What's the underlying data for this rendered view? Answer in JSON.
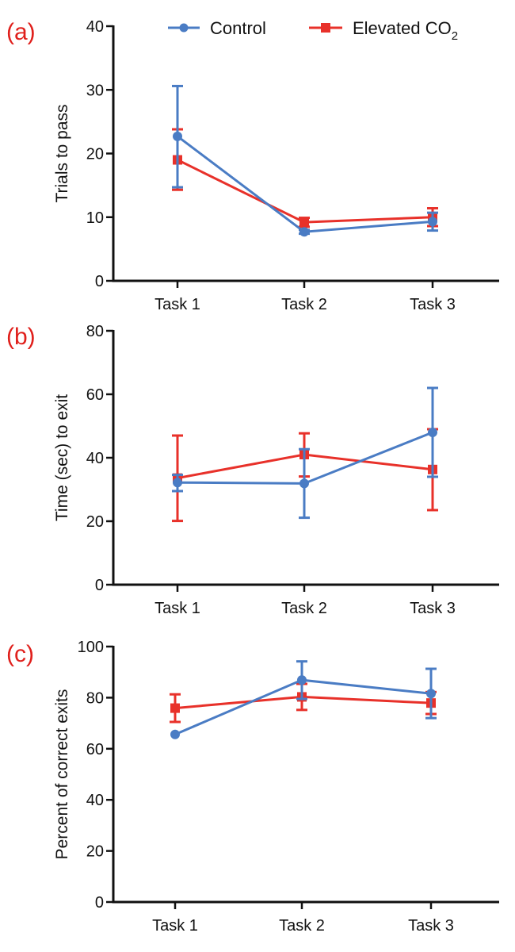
{
  "legend": {
    "control_label": "Control",
    "elevated_label": "Elevated CO",
    "elevated_sub": "2"
  },
  "colors": {
    "control": "#4a7cc4",
    "elevated": "#e8312a",
    "panel_letter": "#e0201c",
    "axis": "#111111"
  },
  "chart_data": [
    {
      "panel": "(a)",
      "type": "line",
      "title": "",
      "xlabel": "",
      "ylabel": "Trials to pass",
      "categories": [
        "Task 1",
        "Task 2",
        "Task 3"
      ],
      "ylim": [
        0,
        40
      ],
      "yticks": [
        0,
        10,
        20,
        30,
        40
      ],
      "series": [
        {
          "name": "Control",
          "values": [
            22.7,
            7.7,
            9.3
          ],
          "error": [
            [
              14.7,
              30.6
            ],
            [
              7.4,
              8.0
            ],
            [
              7.9,
              10.7
            ]
          ]
        },
        {
          "name": "Elevated CO2",
          "values": [
            19.0,
            9.2,
            10.0
          ],
          "error": [
            [
              14.3,
              23.8
            ],
            [
              8.5,
              9.9
            ],
            [
              8.6,
              11.4
            ]
          ]
        }
      ]
    },
    {
      "panel": "(b)",
      "type": "line",
      "title": "",
      "xlabel": "",
      "ylabel": "Time (sec) to exit",
      "categories": [
        "Task 1",
        "Task 2",
        "Task 3"
      ],
      "ylim": [
        0,
        80
      ],
      "yticks": [
        0,
        20,
        40,
        60,
        80
      ],
      "series": [
        {
          "name": "Control",
          "values": [
            32.2,
            31.9,
            48.0
          ],
          "error": [
            [
              29.5,
              34.6
            ],
            [
              21.1,
              42.7
            ],
            [
              34.0,
              62.0
            ]
          ]
        },
        {
          "name": "Elevated CO2",
          "values": [
            33.6,
            41.0,
            36.3
          ],
          "error": [
            [
              20.1,
              47.0
            ],
            [
              34.1,
              47.7
            ],
            [
              23.5,
              49.0
            ]
          ]
        }
      ]
    },
    {
      "panel": "(c)",
      "type": "line",
      "title": "",
      "xlabel": "",
      "ylabel": "Percent of correct exits",
      "categories": [
        "Task 1",
        "Task 2",
        "Task 3"
      ],
      "ylim": [
        0,
        100
      ],
      "yticks": [
        0,
        20,
        40,
        60,
        80,
        100
      ],
      "series": [
        {
          "name": "Control",
          "values": [
            65.6,
            86.9,
            81.6
          ],
          "error": [
            [
              65.6,
              65.6
            ],
            [
              79.5,
              94.2
            ],
            [
              72.0,
              91.3
            ]
          ]
        },
        {
          "name": "Elevated CO2",
          "values": [
            75.9,
            80.3,
            77.9
          ],
          "error": [
            [
              70.5,
              81.3
            ],
            [
              75.2,
              85.4
            ],
            [
              73.6,
              82.2
            ]
          ]
        }
      ]
    }
  ]
}
